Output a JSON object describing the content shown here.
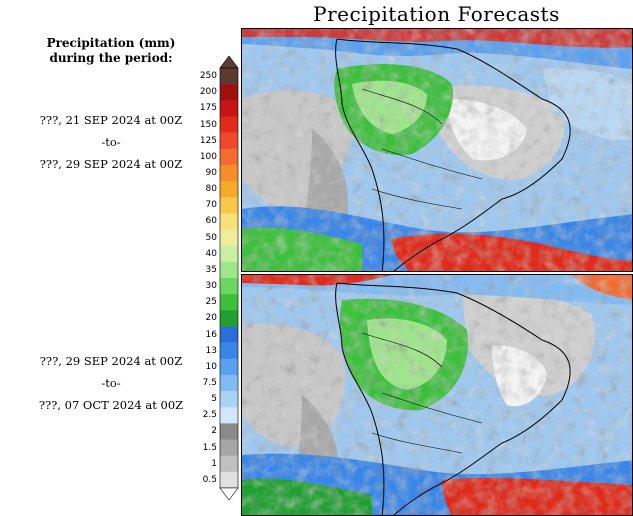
{
  "title": "Precipitation Forecasts",
  "legend": {
    "heading_line1": "Precipitation (mm)",
    "heading_line2": "during the period:",
    "levels": [
      "250",
      "200",
      "175",
      "150",
      "125",
      "100",
      "90",
      "80",
      "70",
      "60",
      "50",
      "40",
      "35",
      "30",
      "25",
      "20",
      "16",
      "13",
      "10",
      "7.5",
      "5",
      "2.5",
      "2",
      "1.5",
      "1",
      "0.5"
    ],
    "colors": [
      "#5c3a30",
      "#a01010",
      "#c81414",
      "#e02a1a",
      "#ee4a2a",
      "#f56a2e",
      "#f78c2a",
      "#f7aa2a",
      "#f7c84a",
      "#f7e27a",
      "#f1ec9c",
      "#c8f0a0",
      "#9ee68a",
      "#6ad860",
      "#3cc03c",
      "#1fa030",
      "#2c6ed8",
      "#3a86e8",
      "#5aa0f0",
      "#82baf4",
      "#a8d2f6",
      "#cfe8fa",
      "#8a8a8a",
      "#a6a6a6",
      "#c0c0c0",
      "#e0e0e0"
    ]
  },
  "periods": [
    {
      "start": "???, 21 SEP 2024 at 00Z",
      "separator": "-to-",
      "end": "???, 29 SEP 2024 at 00Z"
    },
    {
      "start": "???, 29 SEP 2024 at 00Z",
      "separator": "-to-",
      "end": "???, 07 OCT 2024 at 00Z"
    }
  ]
}
